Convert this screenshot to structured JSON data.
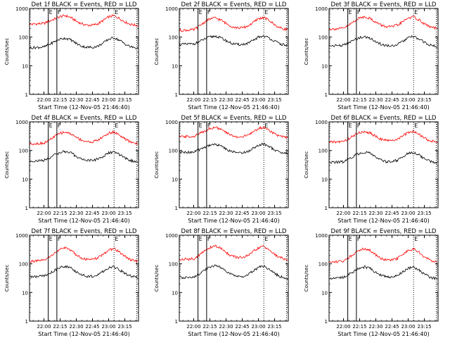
{
  "colors": {
    "events": "#000000",
    "lld": "#ff0000",
    "axis": "#000000"
  },
  "chart_data": [
    {
      "type": "line",
      "title": "Det 1f BLACK = Events, RED = LLD",
      "xlabel": "Start Time (12-Nov-05 21:46:40)",
      "ylabel": "Counts/sec",
      "yscale": "log",
      "ylim": [
        1,
        1000
      ],
      "xlim": [
        "21:46:40",
        "23:27:40"
      ],
      "x_ticks": [
        "22:00",
        "22:15",
        "22:30",
        "22:45",
        "23:00",
        "23:15"
      ],
      "y_ticks": [
        "1",
        "10",
        "100",
        "1000"
      ],
      "markers": [
        {
          "label": "E",
          "x": "22:04",
          "style": "solid"
        },
        {
          "label": "F",
          "x": "22:12",
          "style": "solid"
        },
        {
          "label": "E",
          "x": "23:05",
          "style": "dotted"
        },
        {
          "label": "",
          "x": "23:26",
          "style": "dotted"
        }
      ],
      "x": [
        "21:47",
        "22:00",
        "22:05",
        "22:10",
        "22:15",
        "22:20",
        "22:25",
        "22:30",
        "22:35",
        "22:40",
        "22:45",
        "22:50",
        "22:55",
        "23:00",
        "23:05",
        "23:10",
        "23:15",
        "23:20",
        "23:25",
        "23:27"
      ],
      "series": [
        {
          "name": "LLD",
          "color": "#ff0000",
          "values": [
            280,
            300,
            360,
            430,
            520,
            560,
            480,
            360,
            290,
            260,
            260,
            290,
            380,
            510,
            560,
            450,
            340,
            280,
            260,
            260
          ]
        },
        {
          "name": "Events",
          "color": "#000000",
          "values": [
            42,
            45,
            55,
            70,
            85,
            92,
            80,
            60,
            48,
            44,
            44,
            48,
            62,
            85,
            95,
            78,
            58,
            46,
            42,
            40
          ]
        }
      ]
    },
    {
      "type": "line",
      "title": "Det 2f BLACK = Events, RED = LLD",
      "xlabel": "Start Time (12-Nov-05 21:46:40)",
      "ylabel": "Counts/sec",
      "yscale": "log",
      "ylim": [
        1,
        1000
      ],
      "xlim": [
        "21:46:40",
        "23:27:40"
      ],
      "x_ticks": [
        "22:00",
        "22:15",
        "22:30",
        "22:45",
        "23:00",
        "23:15"
      ],
      "y_ticks": [
        "1",
        "10",
        "100",
        "1000"
      ],
      "markers": [
        {
          "label": "E",
          "x": "22:04",
          "style": "solid"
        },
        {
          "label": "F",
          "x": "22:12",
          "style": "solid"
        },
        {
          "label": "E",
          "x": "23:05",
          "style": "dotted"
        },
        {
          "label": "",
          "x": "23:26",
          "style": "dotted"
        }
      ],
      "x": [
        "21:47",
        "22:00",
        "22:05",
        "22:10",
        "22:15",
        "22:20",
        "22:25",
        "22:30",
        "22:35",
        "22:40",
        "22:45",
        "22:50",
        "22:55",
        "23:00",
        "23:05",
        "23:10",
        "23:15",
        "23:20",
        "23:25",
        "23:27"
      ],
      "series": [
        {
          "name": "LLD",
          "color": "#ff0000",
          "values": [
            170,
            180,
            240,
            330,
            430,
            470,
            400,
            300,
            240,
            210,
            210,
            240,
            320,
            440,
            480,
            380,
            270,
            210,
            190,
            185
          ]
        },
        {
          "name": "Events",
          "color": "#000000",
          "values": [
            55,
            58,
            68,
            85,
            100,
            108,
            95,
            75,
            60,
            55,
            55,
            60,
            75,
            100,
            110,
            92,
            72,
            58,
            52,
            50
          ]
        }
      ]
    },
    {
      "type": "line",
      "title": "Det 3f BLACK = Events, RED = LLD",
      "xlabel": "Start Time (12-Nov-05 21:46:40)",
      "ylabel": "Counts/sec",
      "yscale": "log",
      "ylim": [
        1,
        1000
      ],
      "xlim": [
        "21:46:40",
        "23:27:40"
      ],
      "x_ticks": [
        "22:00",
        "22:15",
        "22:30",
        "22:45",
        "23:00",
        "23:15"
      ],
      "y_ticks": [
        "1",
        "10",
        "100",
        "1000"
      ],
      "markers": [
        {
          "label": "E",
          "x": "22:04",
          "style": "solid"
        },
        {
          "label": "F",
          "x": "22:12",
          "style": "solid"
        },
        {
          "label": "E",
          "x": "23:05",
          "style": "dotted"
        },
        {
          "label": "",
          "x": "23:26",
          "style": "dotted"
        }
      ],
      "x": [
        "21:47",
        "22:00",
        "22:05",
        "22:10",
        "22:15",
        "22:20",
        "22:25",
        "22:30",
        "22:35",
        "22:40",
        "22:45",
        "22:50",
        "22:55",
        "23:00",
        "23:05",
        "23:10",
        "23:15",
        "23:20",
        "23:25",
        "23:27"
      ],
      "series": [
        {
          "name": "LLD",
          "color": "#ff0000",
          "values": [
            190,
            200,
            260,
            360,
            470,
            520,
            440,
            330,
            260,
            230,
            230,
            260,
            340,
            470,
            510,
            400,
            290,
            230,
            205,
            200
          ]
        },
        {
          "name": "Events",
          "color": "#000000",
          "values": [
            50,
            52,
            62,
            80,
            95,
            102,
            90,
            70,
            56,
            50,
            50,
            55,
            70,
            95,
            105,
            85,
            66,
            53,
            48,
            46
          ]
        }
      ]
    },
    {
      "type": "line",
      "title": "Det 4f BLACK = Events, RED = LLD",
      "xlabel": "Start Time (12-Nov-05 21:46:40)",
      "ylabel": "Counts/sec",
      "yscale": "log",
      "ylim": [
        1,
        1000
      ],
      "xlim": [
        "21:46:40",
        "23:27:40"
      ],
      "x_ticks": [
        "22:00",
        "22:15",
        "22:30",
        "22:45",
        "23:00",
        "23:15"
      ],
      "y_ticks": [
        "1",
        "10",
        "100",
        "1000"
      ],
      "markers": [
        {
          "label": "E",
          "x": "22:04",
          "style": "solid"
        },
        {
          "label": "F",
          "x": "22:12",
          "style": "solid"
        },
        {
          "label": "E",
          "x": "23:05",
          "style": "dotted"
        },
        {
          "label": "",
          "x": "23:26",
          "style": "dotted"
        }
      ],
      "x": [
        "21:47",
        "22:00",
        "22:05",
        "22:10",
        "22:15",
        "22:20",
        "22:25",
        "22:30",
        "22:35",
        "22:40",
        "22:45",
        "22:50",
        "22:55",
        "23:00",
        "23:05",
        "23:10",
        "23:15",
        "23:20",
        "23:25",
        "23:27"
      ],
      "series": [
        {
          "name": "LLD",
          "color": "#ff0000",
          "values": [
            170,
            180,
            230,
            310,
            400,
            440,
            380,
            290,
            230,
            200,
            200,
            230,
            300,
            400,
            440,
            350,
            250,
            200,
            180,
            175
          ]
        },
        {
          "name": "Events",
          "color": "#000000",
          "values": [
            42,
            45,
            55,
            70,
            85,
            92,
            82,
            62,
            50,
            45,
            45,
            50,
            62,
            82,
            88,
            72,
            55,
            45,
            40,
            38
          ]
        }
      ]
    },
    {
      "type": "line",
      "title": "Det 5f BLACK = Events, RED = LLD",
      "xlabel": "Start Time (12-Nov-05 21:46:40)",
      "ylabel": "Counts/sec",
      "yscale": "log",
      "ylim": [
        1,
        1000
      ],
      "xlim": [
        "21:46:40",
        "23:27:40"
      ],
      "x_ticks": [
        "22:00",
        "22:15",
        "22:30",
        "22:45",
        "23:00",
        "23:15"
      ],
      "y_ticks": [
        "1",
        "10",
        "100",
        "1000"
      ],
      "markers": [
        {
          "label": "E",
          "x": "22:04",
          "style": "solid"
        },
        {
          "label": "F",
          "x": "22:12",
          "style": "solid"
        },
        {
          "label": "E",
          "x": "23:05",
          "style": "dotted"
        },
        {
          "label": "",
          "x": "23:26",
          "style": "dotted"
        }
      ],
      "x": [
        "21:47",
        "22:00",
        "22:05",
        "22:10",
        "22:15",
        "22:20",
        "22:25",
        "22:30",
        "22:35",
        "22:40",
        "22:45",
        "22:50",
        "22:55",
        "23:00",
        "23:05",
        "23:10",
        "23:15",
        "23:20",
        "23:25",
        "23:27"
      ],
      "series": [
        {
          "name": "LLD",
          "color": "#ff0000",
          "values": [
            300,
            310,
            380,
            480,
            590,
            640,
            550,
            420,
            340,
            300,
            300,
            340,
            440,
            590,
            640,
            510,
            380,
            310,
            285,
            280
          ]
        },
        {
          "name": "Events",
          "color": "#000000",
          "values": [
            85,
            88,
            105,
            130,
            155,
            165,
            145,
            112,
            92,
            84,
            84,
            92,
            118,
            158,
            170,
            138,
            104,
            86,
            80,
            78
          ]
        }
      ]
    },
    {
      "type": "line",
      "title": "Det 6f BLACK = Events, RED = LLD",
      "xlabel": "Start Time (12-Nov-05 21:46:40)",
      "ylabel": "Counts/sec",
      "yscale": "log",
      "ylim": [
        1,
        1000
      ],
      "xlim": [
        "21:46:40",
        "23:27:40"
      ],
      "x_ticks": [
        "22:00",
        "22:15",
        "22:30",
        "22:45",
        "23:00",
        "23:15"
      ],
      "y_ticks": [
        "1",
        "10",
        "100",
        "1000"
      ],
      "markers": [
        {
          "label": "E",
          "x": "22:04",
          "style": "solid"
        },
        {
          "label": "F",
          "x": "22:12",
          "style": "solid"
        },
        {
          "label": "E",
          "x": "23:05",
          "style": "dotted"
        },
        {
          "label": "",
          "x": "23:26",
          "style": "dotted"
        }
      ],
      "x": [
        "21:47",
        "22:00",
        "22:05",
        "22:10",
        "22:15",
        "22:20",
        "22:25",
        "22:30",
        "22:35",
        "22:40",
        "22:45",
        "22:50",
        "22:55",
        "23:00",
        "23:05",
        "23:10",
        "23:15",
        "23:20",
        "23:25",
        "23:27"
      ],
      "series": [
        {
          "name": "LLD",
          "color": "#ff0000",
          "values": [
            195,
            205,
            260,
            340,
            420,
            460,
            400,
            310,
            250,
            220,
            220,
            250,
            320,
            420,
            460,
            370,
            270,
            220,
            200,
            195
          ]
        },
        {
          "name": "Events",
          "color": "#000000",
          "values": [
            38,
            40,
            50,
            65,
            80,
            88,
            78,
            58,
            46,
            40,
            40,
            46,
            60,
            80,
            86,
            70,
            52,
            42,
            38,
            36
          ]
        }
      ]
    },
    {
      "type": "line",
      "title": "Det 7f BLACK = Events, RED = LLD",
      "xlabel": "Start Time (12-Nov-05 21:46:40)",
      "ylabel": "Counts/sec",
      "yscale": "log",
      "ylim": [
        1,
        1000
      ],
      "xlim": [
        "21:46:40",
        "23:27:40"
      ],
      "x_ticks": [
        "22:00",
        "22:15",
        "22:30",
        "22:45",
        "23:00",
        "23:15"
      ],
      "y_ticks": [
        "1",
        "10",
        "100",
        "1000"
      ],
      "markers": [
        {
          "label": "E",
          "x": "22:04",
          "style": "solid"
        },
        {
          "label": "F",
          "x": "22:12",
          "style": "solid"
        },
        {
          "label": "E",
          "x": "23:05",
          "style": "dotted"
        },
        {
          "label": "",
          "x": "23:26",
          "style": "dotted"
        }
      ],
      "x": [
        "21:47",
        "22:00",
        "22:05",
        "22:10",
        "22:15",
        "22:20",
        "22:25",
        "22:30",
        "22:35",
        "22:40",
        "22:45",
        "22:50",
        "22:55",
        "23:00",
        "23:05",
        "23:10",
        "23:15",
        "23:20",
        "23:25",
        "23:27"
      ],
      "series": [
        {
          "name": "LLD",
          "color": "#ff0000",
          "values": [
            120,
            130,
            170,
            240,
            320,
            360,
            300,
            210,
            160,
            140,
            140,
            160,
            220,
            300,
            340,
            260,
            180,
            140,
            125,
            120
          ]
        },
        {
          "name": "Events",
          "color": "#000000",
          "values": [
            35,
            37,
            45,
            60,
            75,
            82,
            70,
            52,
            42,
            37,
            37,
            42,
            55,
            72,
            78,
            62,
            46,
            38,
            34,
            33
          ]
        }
      ]
    },
    {
      "type": "line",
      "title": "Det 8f BLACK = Events, RED = LLD",
      "xlabel": "Start Time (12-Nov-05 21:46:40)",
      "ylabel": "Counts/sec",
      "yscale": "log",
      "ylim": [
        1,
        1000
      ],
      "xlim": [
        "21:46:40",
        "23:27:40"
      ],
      "x_ticks": [
        "22:00",
        "22:15",
        "22:30",
        "22:45",
        "23:00",
        "23:15"
      ],
      "y_ticks": [
        "1",
        "10",
        "100",
        "1000"
      ],
      "markers": [
        {
          "label": "E",
          "x": "22:04",
          "style": "solid"
        },
        {
          "label": "F",
          "x": "22:12",
          "style": "solid"
        },
        {
          "label": "E",
          "x": "23:05",
          "style": "dotted"
        },
        {
          "label": "",
          "x": "23:26",
          "style": "dotted"
        }
      ],
      "x": [
        "21:47",
        "22:00",
        "22:05",
        "22:10",
        "22:15",
        "22:20",
        "22:25",
        "22:30",
        "22:35",
        "22:40",
        "22:45",
        "22:50",
        "22:55",
        "23:00",
        "23:05",
        "23:10",
        "23:15",
        "23:20",
        "23:25",
        "23:27"
      ],
      "series": [
        {
          "name": "LLD",
          "color": "#ff0000",
          "values": [
            140,
            150,
            200,
            280,
            370,
            420,
            350,
            250,
            190,
            165,
            165,
            190,
            260,
            360,
            400,
            310,
            210,
            165,
            148,
            142
          ]
        },
        {
          "name": "Events",
          "color": "#000000",
          "values": [
            33,
            35,
            44,
            60,
            78,
            86,
            74,
            54,
            42,
            36,
            36,
            42,
            56,
            76,
            82,
            64,
            46,
            36,
            32,
            30
          ]
        }
      ]
    },
    {
      "type": "line",
      "title": "Det 9f BLACK = Events, RED = LLD",
      "xlabel": "Start Time (12-Nov-05 21:46:40)",
      "ylabel": "Counts/sec",
      "yscale": "log",
      "ylim": [
        1,
        1000
      ],
      "xlim": [
        "21:46:40",
        "23:27:40"
      ],
      "x_ticks": [
        "22:00",
        "22:15",
        "22:30",
        "22:45",
        "23:00",
        "23:15"
      ],
      "y_ticks": [
        "1",
        "10",
        "100",
        "1000"
      ],
      "markers": [
        {
          "label": "E",
          "x": "22:04",
          "style": "solid"
        },
        {
          "label": "F",
          "x": "22:12",
          "style": "solid"
        },
        {
          "label": "E",
          "x": "23:05",
          "style": "dotted"
        },
        {
          "label": "",
          "x": "23:26",
          "style": "dotted"
        }
      ],
      "x": [
        "21:47",
        "22:00",
        "22:05",
        "22:10",
        "22:15",
        "22:20",
        "22:25",
        "22:30",
        "22:35",
        "22:40",
        "22:45",
        "22:50",
        "22:55",
        "23:00",
        "23:05",
        "23:10",
        "23:15",
        "23:20",
        "23:25",
        "23:27"
      ],
      "series": [
        {
          "name": "LLD",
          "color": "#ff0000",
          "values": [
            115,
            125,
            165,
            230,
            310,
            345,
            290,
            205,
            155,
            135,
            135,
            155,
            210,
            290,
            325,
            250,
            175,
            135,
            120,
            115
          ]
        },
        {
          "name": "Events",
          "color": "#000000",
          "values": [
            32,
            34,
            42,
            56,
            72,
            78,
            68,
            50,
            40,
            35,
            35,
            40,
            52,
            70,
            76,
            60,
            44,
            35,
            31,
            30
          ]
        }
      ]
    }
  ]
}
